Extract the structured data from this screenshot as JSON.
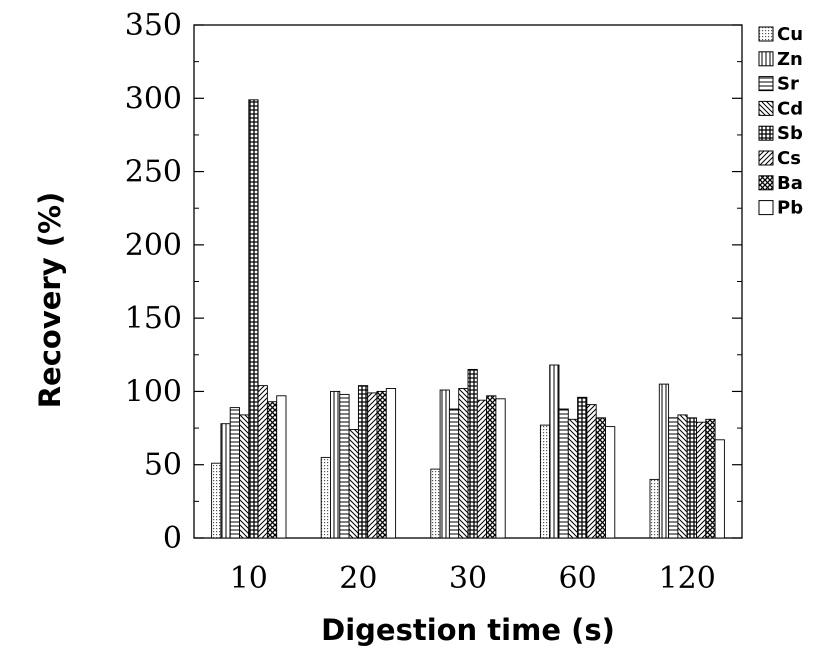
{
  "chart_data": {
    "type": "bar",
    "title": "",
    "xlabel": "Digestion time (s)",
    "ylabel": "Recovery (%)",
    "ylim": [
      0,
      350
    ],
    "yticks": [
      "0",
      "50",
      "100",
      "150",
      "200",
      "250",
      "300",
      "350"
    ],
    "categories": [
      "10",
      "20",
      "30",
      "60",
      "120"
    ],
    "grid": false,
    "legend_position": "right",
    "series": [
      {
        "name": "Cu",
        "pattern": "dots",
        "values": [
          51,
          55,
          47,
          77,
          40
        ]
      },
      {
        "name": "Zn",
        "pattern": "vertical",
        "values": [
          78,
          100,
          101,
          118,
          105
        ]
      },
      {
        "name": "Sr",
        "pattern": "horizontal",
        "values": [
          89,
          98,
          88,
          88,
          82
        ]
      },
      {
        "name": "Cd",
        "pattern": "diagonal-back",
        "values": [
          84,
          74,
          102,
          81,
          84
        ]
      },
      {
        "name": "Sb",
        "pattern": "grid",
        "values": [
          299,
          104,
          115,
          96,
          82
        ]
      },
      {
        "name": "Cs",
        "pattern": "diagonal-forward",
        "values": [
          104,
          99,
          94,
          91,
          79
        ]
      },
      {
        "name": "Ba",
        "pattern": "crosshatch",
        "values": [
          93,
          100,
          97,
          82,
          81
        ]
      },
      {
        "name": "Pb",
        "pattern": "blank",
        "values": [
          97,
          102,
          95,
          76,
          67
        ]
      }
    ]
  }
}
